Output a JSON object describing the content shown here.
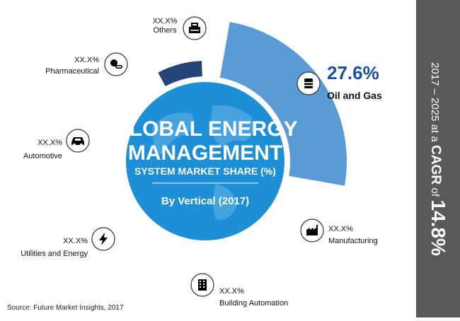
{
  "chart_data": {
    "type": "pie",
    "title": "GLOBAL ENERGY MANAGEMENT",
    "subtitle": "SYSTEM MARKET SHARE (%)",
    "by_line": "By Vertical (2017)",
    "categories": [
      "Oil and Gas",
      "Manufacturing",
      "Building Automation",
      "Utilities and Energy",
      "Automotive",
      "Pharmaceutical",
      "Others"
    ],
    "value_labels": [
      "27.6%",
      "XX.X%",
      "XX.X%",
      "XX.X%",
      "XX.X%",
      "XX.X%",
      "XX.X%"
    ],
    "values": [
      27.6,
      null,
      null,
      null,
      null,
      null,
      null
    ],
    "colors": [
      "#5b9bd5",
      "#ed7d31",
      "#a5a5a5",
      "#ffc000",
      "#4472c4",
      "#70ad47",
      "#264478"
    ],
    "icons": [
      "oil-barrel-icon",
      "factory-icon",
      "building-icon",
      "lightning-bolt-icon",
      "car-icon",
      "pill-icon",
      "cash-register-icon"
    ],
    "highlight_color": "#1f4e9e",
    "center_color": "#1d8fd6"
  },
  "cagr": {
    "prefix": "2017 – 2025 at a",
    "label": "CAGR",
    "of": "of",
    "value": "14.8%"
  },
  "source": "Source: Future Market Insights, 2017"
}
